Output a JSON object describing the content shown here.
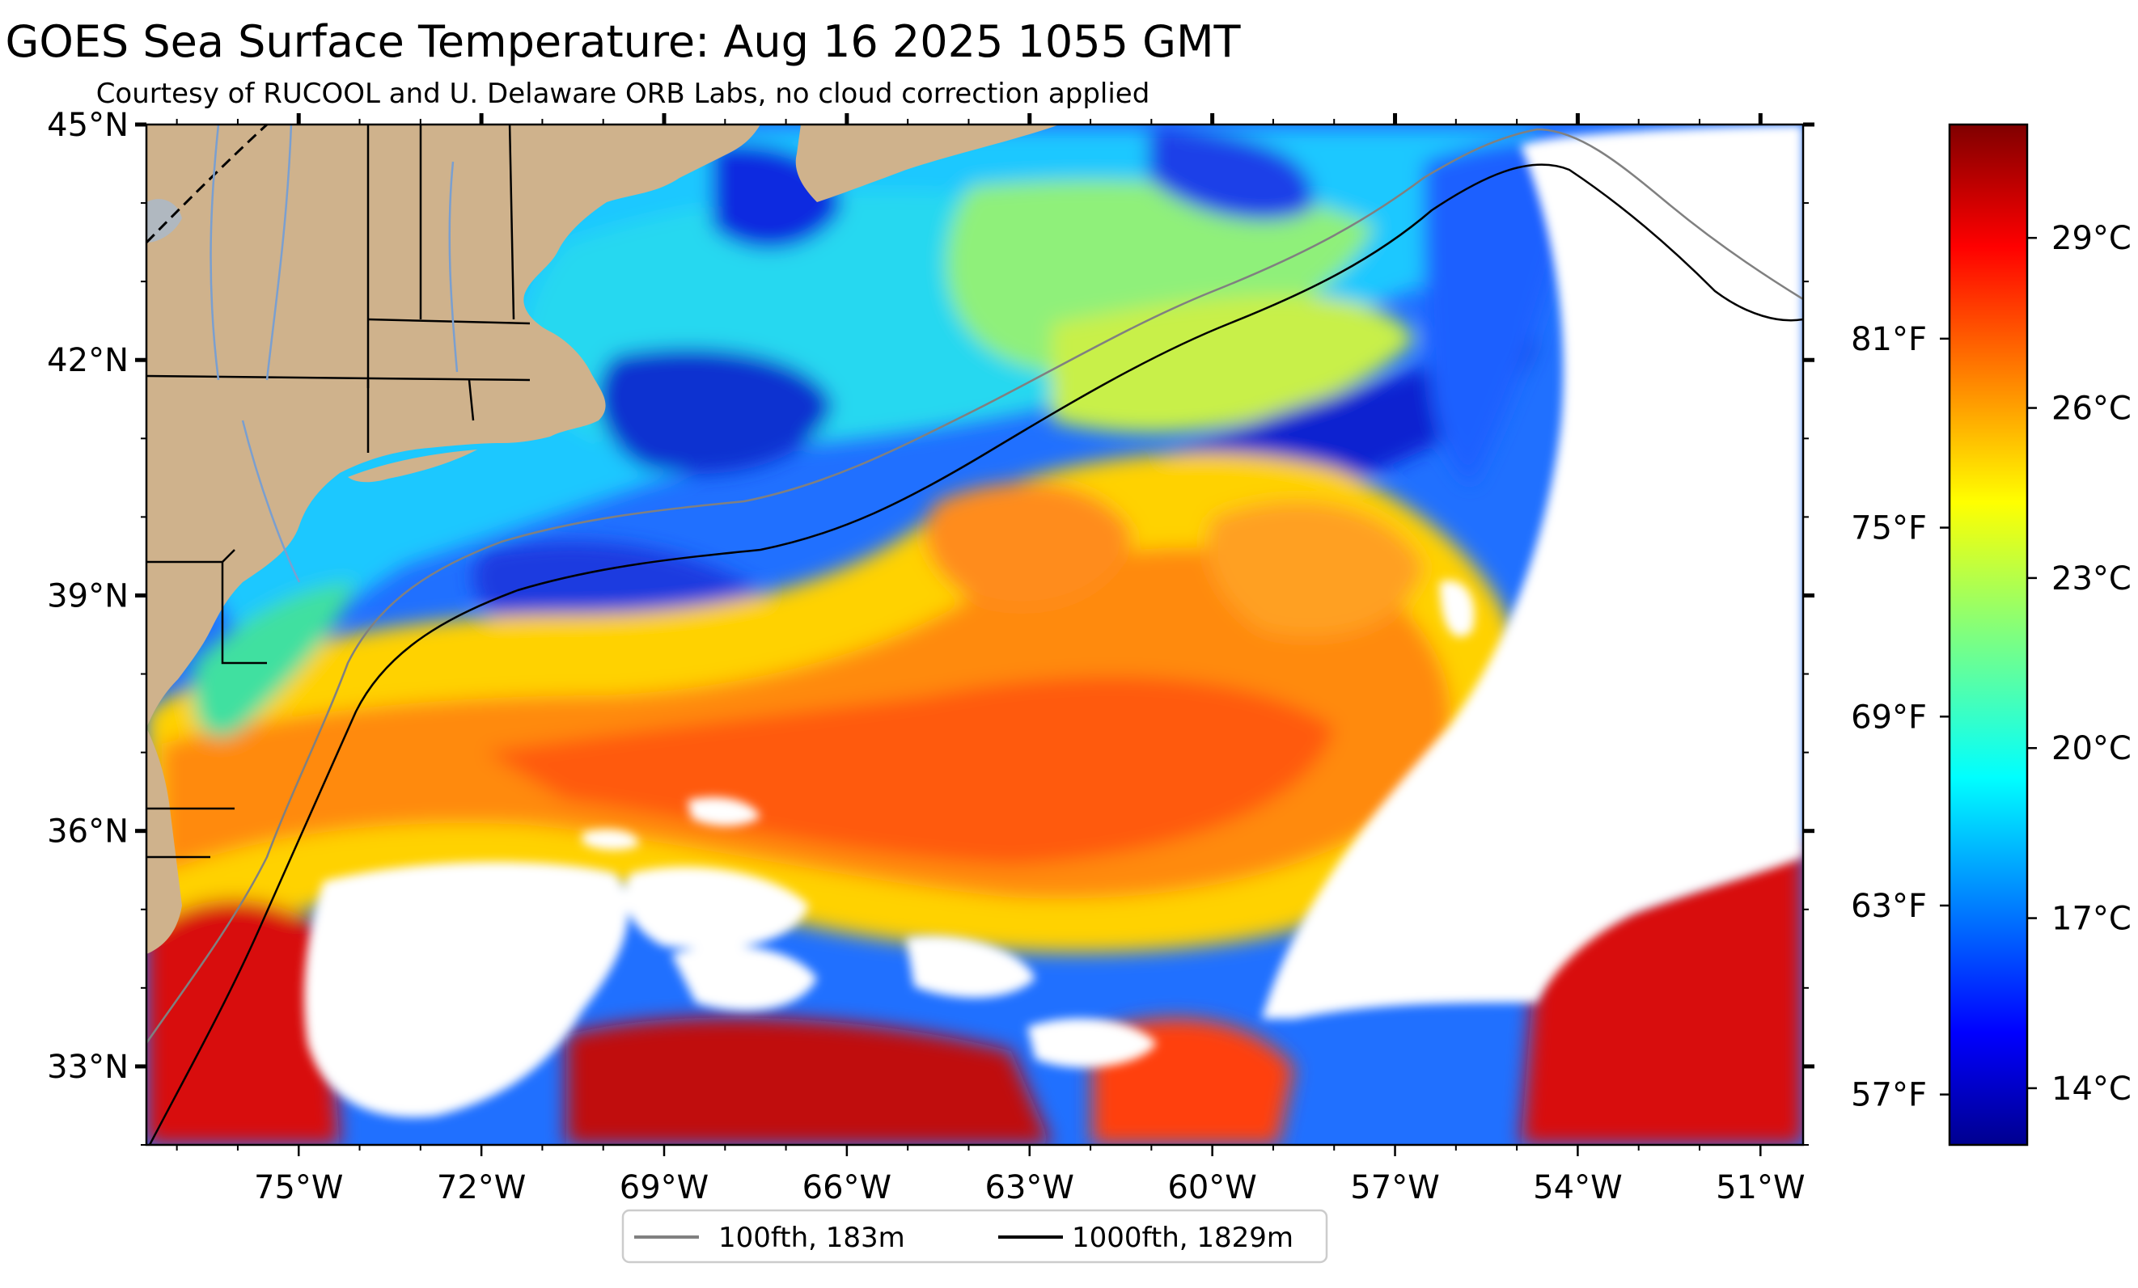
{
  "title": "GOES Sea Surface Temperature: Aug 16 2025 1055 GMT",
  "subtitle": "Courtesy of RUCOOL and U. Delaware ORB Labs, no cloud correction applied",
  "map": {
    "lon_range": [
      -77.5,
      -50.3
    ],
    "lat_range": [
      32.0,
      45.0
    ],
    "lon_ticks": [
      {
        "value": -75,
        "label": "75°W"
      },
      {
        "value": -72,
        "label": "72°W"
      },
      {
        "value": -69,
        "label": "69°W"
      },
      {
        "value": -66,
        "label": "66°W"
      },
      {
        "value": -63,
        "label": "63°W"
      },
      {
        "value": -60,
        "label": "60°W"
      },
      {
        "value": -57,
        "label": "57°W"
      },
      {
        "value": -54,
        "label": "54°W"
      },
      {
        "value": -51,
        "label": "51°W"
      }
    ],
    "lat_ticks": [
      {
        "value": 45,
        "label": "45°N"
      },
      {
        "value": 42,
        "label": "42°N"
      },
      {
        "value": 39,
        "label": "39°N"
      },
      {
        "value": 36,
        "label": "36°N"
      },
      {
        "value": 33,
        "label": "33°N"
      }
    ],
    "colors": {
      "land": "#cfb28c",
      "cloud": "#ffffff",
      "contour_100fth": "#808080",
      "contour_1000fth": "#000000",
      "lakes": "#b0b8c0",
      "rivers": "#7a9fd0"
    }
  },
  "colorbar": {
    "colormap": "jet",
    "celsius_range": [
      13.0,
      31.0
    ],
    "celsius_ticks": [
      {
        "value": 14,
        "label": "14°C"
      },
      {
        "value": 17,
        "label": "17°C"
      },
      {
        "value": 20,
        "label": "20°C"
      },
      {
        "value": 23,
        "label": "23°C"
      },
      {
        "value": 26,
        "label": "26°C"
      },
      {
        "value": 29,
        "label": "29°C"
      }
    ],
    "fahrenheit_ticks": [
      {
        "value": 57,
        "label": "57°F"
      },
      {
        "value": 63,
        "label": "63°F"
      },
      {
        "value": 69,
        "label": "69°F"
      },
      {
        "value": 75,
        "label": "75°F"
      },
      {
        "value": 81,
        "label": "81°F"
      }
    ]
  },
  "legend": {
    "items": [
      {
        "label": "100fth, 183m",
        "color": "#808080"
      },
      {
        "label": "1000fth, 1829m",
        "color": "#000000"
      }
    ]
  }
}
